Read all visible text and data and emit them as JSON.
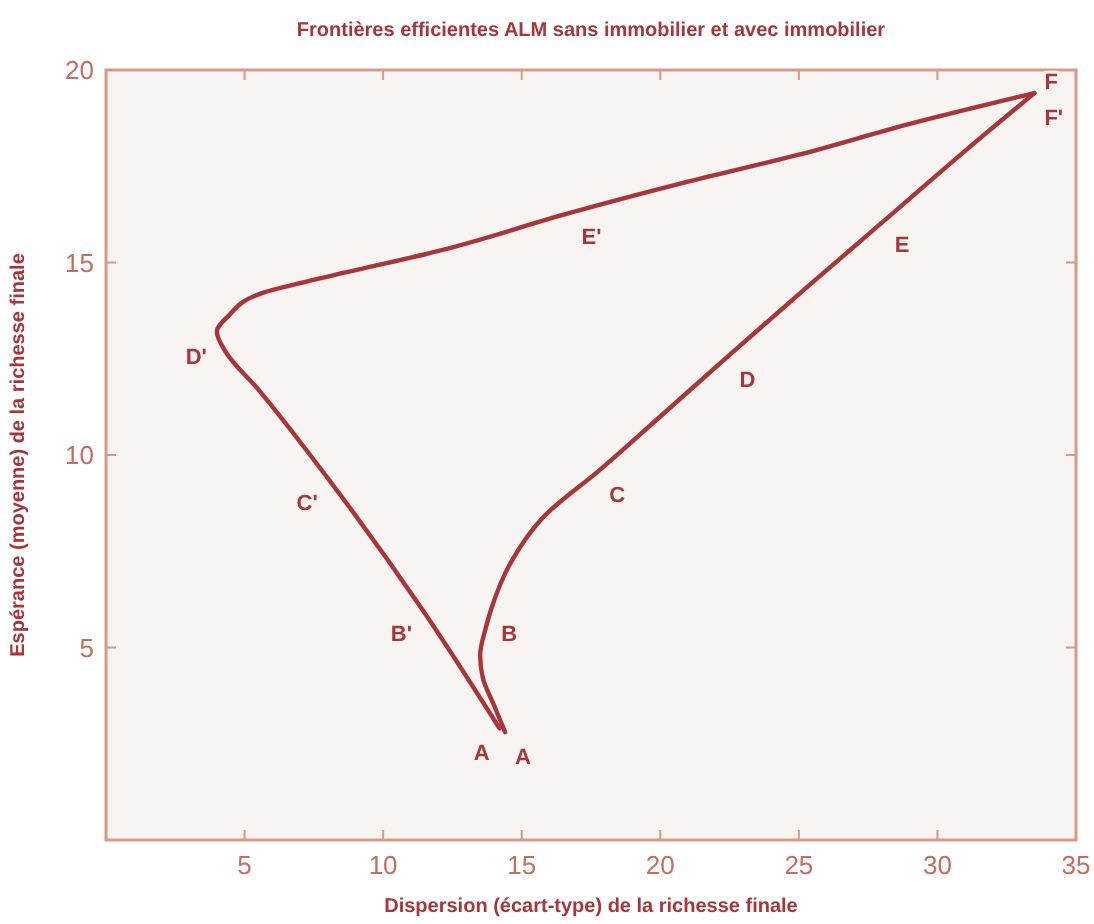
{
  "chart_data": {
    "type": "line",
    "title": "Frontières efficientes ALM sans immobilier et avec immobilier",
    "xlabel": "Dispersion (écart-type) de la richesse finale",
    "ylabel": "Espérance (moyenne) de la richesse finale",
    "xlim": [
      0,
      35
    ],
    "ylim": [
      0,
      20
    ],
    "xticks": [
      5,
      10,
      15,
      20,
      25,
      30,
      35
    ],
    "yticks": [
      5,
      10,
      15,
      20
    ],
    "grid": false,
    "marker": "none",
    "line_style": "solid",
    "series": [
      {
        "color": "#a8353a",
        "x": [
          14.4,
          14.0,
          13.6,
          13.5,
          13.7,
          13.9,
          14.6,
          15.8,
          17.8,
          20.0,
          22.5,
          25.2,
          28.1,
          31.0,
          33.5
        ],
        "values": [
          2.8,
          3.5,
          4.2,
          4.8,
          5.5,
          6.0,
          7.2,
          8.4,
          9.6,
          11.0,
          12.6,
          14.3,
          16.1,
          17.9,
          19.4
        ]
      },
      {
        "color": "#a8353a",
        "x": [
          14.2,
          11.4,
          8.0,
          5.5,
          4.3,
          4.0,
          4.4,
          5.6,
          7.8,
          12.0,
          16.8,
          21.0,
          25.0,
          29.0,
          33.5
        ],
        "values": [
          2.9,
          6.0,
          9.4,
          11.7,
          12.7,
          13.2,
          13.6,
          14.2,
          14.6,
          15.3,
          16.3,
          17.1,
          17.8,
          18.6,
          19.4
        ]
      }
    ],
    "annotations": [
      {
        "text": "A",
        "x": 14.4,
        "y": 2.8
      },
      {
        "text": "A",
        "x": 14.2,
        "y": 2.9
      },
      {
        "text": "B'",
        "x": 11.4,
        "y": 6.0
      },
      {
        "text": "B",
        "x": 13.9,
        "y": 6.0
      },
      {
        "text": "C'",
        "x": 8.0,
        "y": 9.4
      },
      {
        "text": "C",
        "x": 17.8,
        "y": 9.6
      },
      {
        "text": "D'",
        "x": 4.0,
        "y": 13.2
      },
      {
        "text": "D",
        "x": 22.5,
        "y": 12.6
      },
      {
        "text": "E'",
        "x": 16.8,
        "y": 16.3
      },
      {
        "text": "E",
        "x": 28.1,
        "y": 16.1
      },
      {
        "text": "F'",
        "x": 33.5,
        "y": 19.4
      },
      {
        "text": "F",
        "x": 33.5,
        "y": 19.4
      }
    ]
  }
}
